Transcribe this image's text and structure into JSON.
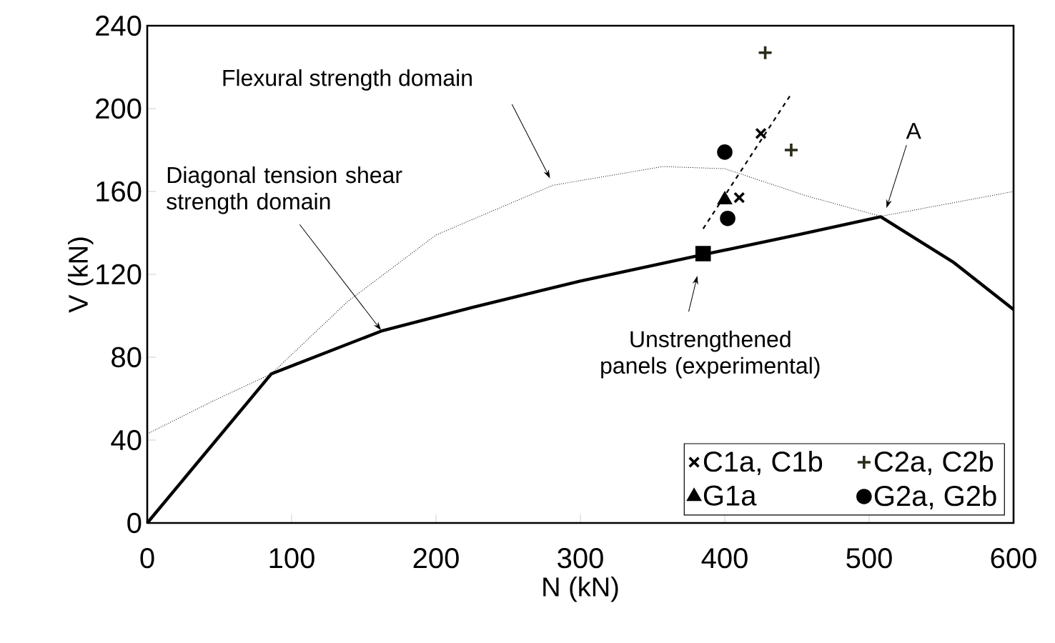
{
  "chart_data": {
    "type": "scatter",
    "xlabel": "N (kN)",
    "ylabel": "V (kN)",
    "xlim": [
      0,
      600
    ],
    "ylim": [
      0,
      240
    ],
    "xticks": [
      0,
      100,
      200,
      300,
      400,
      500,
      600
    ],
    "yticks": [
      0,
      40,
      80,
      120,
      160,
      200,
      240
    ],
    "grid": false,
    "legend": "bottom right",
    "series": [
      {
        "type": "line",
        "line_style": "solid",
        "marker": "none",
        "color": "#000000",
        "x": [
          0,
          86,
          162,
          225,
          300,
          385,
          450,
          508,
          558,
          600
        ],
        "values": [
          0,
          72,
          92.6,
          104,
          116.8,
          129.5,
          139,
          147.8,
          126,
          103
        ]
      },
      {
        "type": "line",
        "line_style": "dotted",
        "marker": "none",
        "color": "#000000",
        "x": [
          0,
          46,
          86,
          139,
          200,
          281,
          357,
          400,
          456,
          508,
          600
        ],
        "values": [
          43,
          59,
          72,
          107,
          139,
          163,
          172,
          171,
          158,
          148,
          160
        ]
      },
      {
        "type": "line",
        "line_style": "dashed",
        "marker": "none",
        "color": "#000000",
        "x": [
          385,
          445
        ],
        "values": [
          142,
          206
        ]
      },
      {
        "marker": "square",
        "color": "#000000",
        "x": [
          385
        ],
        "values": [
          130
        ]
      },
      {
        "name": "C1a, C1b",
        "marker": "x",
        "color": "#000000",
        "x": [
          410,
          425
        ],
        "values": [
          157,
          188
        ]
      },
      {
        "name": "C2a, C2b",
        "marker": "cross",
        "color": "#2b2b1a",
        "x": [
          428,
          446
        ],
        "values": [
          227,
          180
        ]
      },
      {
        "name": "G1a",
        "marker": "triangle",
        "color": "#000000",
        "x": [
          400
        ],
        "values": [
          156
        ]
      },
      {
        "name": "G2a, G2b",
        "marker": "circle",
        "color": "#000000",
        "x": [
          400,
          402
        ],
        "values": [
          179,
          147
        ]
      }
    ],
    "annotations": [
      "Flexural strength domain",
      {
        "text": "Diagonal tension shear strength domain",
        "x": 162,
        "y": 93
      },
      {
        "text": "A",
        "x": 512,
        "y": 152
      },
      "Unstrengthened panels (experimental)"
    ]
  }
}
